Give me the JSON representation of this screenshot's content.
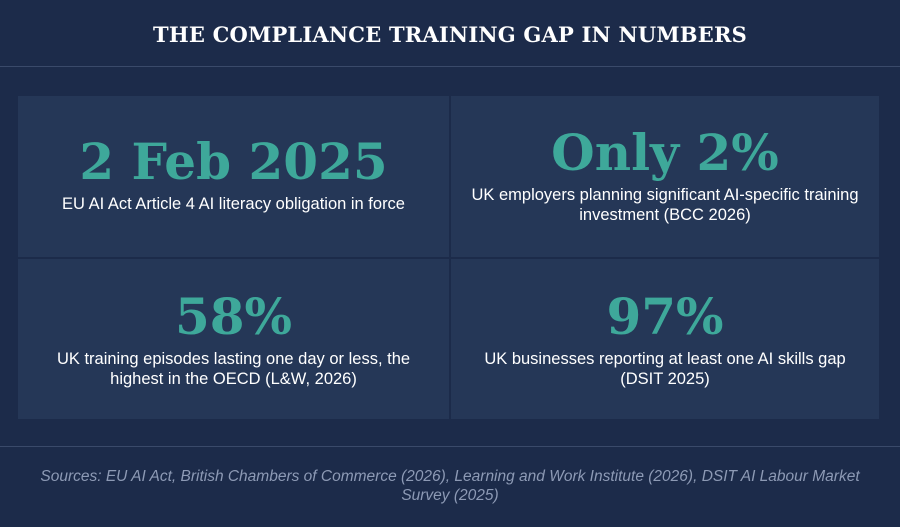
{
  "header": {
    "title": "THE COMPLIANCE TRAINING GAP IN NUMBERS"
  },
  "cards": [
    {
      "stat": "2 Feb 2025",
      "description": "EU AI Act Article 4 AI literacy obligation in force"
    },
    {
      "stat": "Only 2%",
      "description": "UK employers planning significant AI-specific training investment (BCC 2026)"
    },
    {
      "stat": "58%",
      "description": "UK training episodes lasting one day or less, the highest in the OECD (L&W, 2026)"
    },
    {
      "stat": "97%",
      "description": "UK businesses reporting at least one AI skills gap (DSIT 2025)"
    }
  ],
  "footer": {
    "sources": "Sources: EU AI Act, British Chambers of Commerce (2026), Learning and Work Institute (2026), DSIT AI Labour Market Survey (2025)"
  },
  "colors": {
    "background": "#1c2b4a",
    "card": "#253757",
    "accent": "#3ea89a",
    "text": "#ffffff",
    "muted": "#8d9ab5"
  }
}
